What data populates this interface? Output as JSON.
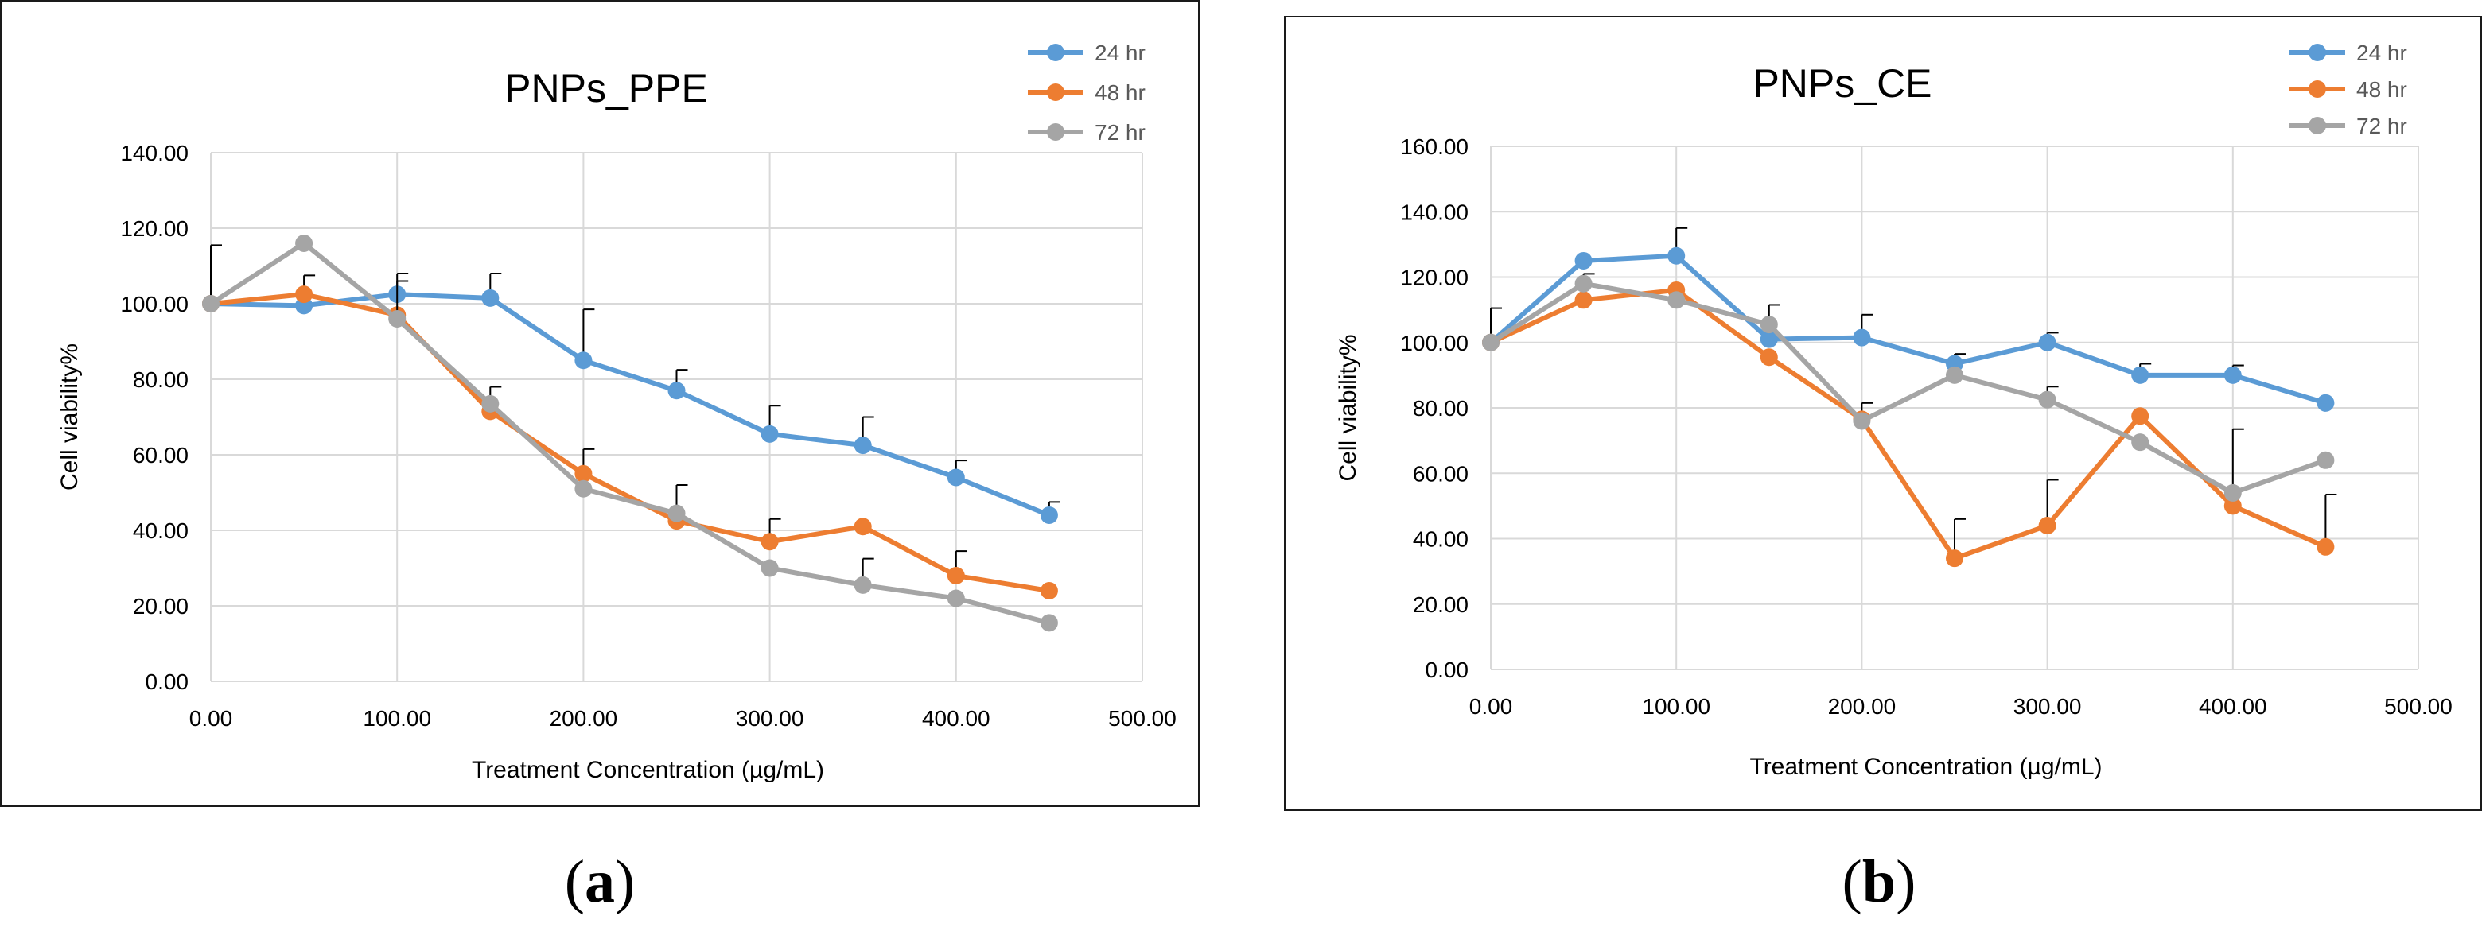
{
  "chart_data": [
    {
      "panel": "a",
      "type": "line",
      "title": "PNPs_PPE",
      "xlabel": "Treatment Concentration (µg/mL)",
      "ylabel": "Cell viability%",
      "xlim": [
        0,
        500
      ],
      "ylim": [
        0,
        140
      ],
      "x_ticks": [
        "0.00",
        "100.00",
        "200.00",
        "300.00",
        "400.00",
        "500.00"
      ],
      "y_ticks": [
        "0.00",
        "20.00",
        "40.00",
        "60.00",
        "80.00",
        "100.00",
        "120.00",
        "140.00"
      ],
      "x_tick_values": [
        0,
        100,
        200,
        300,
        400,
        500
      ],
      "y_tick_values": [
        0,
        20,
        40,
        60,
        80,
        100,
        120,
        140
      ],
      "grid": true,
      "legend_position": "top-right",
      "x": [
        0,
        50,
        100,
        150,
        200,
        250,
        300,
        350,
        400,
        450
      ],
      "series": [
        {
          "name": "24 hr",
          "color": "#5b9bd5",
          "values": [
            100,
            99.5,
            102.5,
            101.5,
            85,
            77,
            65.5,
            62.5,
            54,
            44
          ],
          "errors": [
            0,
            0,
            5.5,
            6.5,
            13.5,
            5.5,
            7.5,
            7.5,
            4.5,
            3.5
          ]
        },
        {
          "name": "48 hr",
          "color": "#ed7d31",
          "values": [
            100,
            102.5,
            97,
            71.5,
            55,
            42.5,
            37,
            41,
            28,
            24
          ],
          "errors": [
            0,
            5,
            0,
            0,
            6.5,
            0,
            6,
            0,
            6.5,
            0
          ]
        },
        {
          "name": "72 hr",
          "color": "#a5a5a5",
          "values": [
            100,
            116,
            96,
            73.5,
            51,
            44.5,
            30,
            25.5,
            22,
            15.5
          ],
          "errors": [
            15.5,
            0,
            10,
            4.5,
            0,
            7.5,
            0,
            7,
            0,
            0
          ]
        }
      ]
    },
    {
      "panel": "b",
      "type": "line",
      "title": "PNPs_CE",
      "xlabel": "Treatment Concentration (µg/mL)",
      "ylabel": "Cell viability%",
      "xlim": [
        0,
        500
      ],
      "ylim": [
        0,
        160
      ],
      "x_ticks": [
        "0.00",
        "100.00",
        "200.00",
        "300.00",
        "400.00",
        "500.00"
      ],
      "y_ticks": [
        "0.00",
        "20.00",
        "40.00",
        "60.00",
        "80.00",
        "100.00",
        "120.00",
        "140.00",
        "160.00"
      ],
      "x_tick_values": [
        0,
        100,
        200,
        300,
        400,
        500
      ],
      "y_tick_values": [
        0,
        20,
        40,
        60,
        80,
        100,
        120,
        140,
        160
      ],
      "grid": true,
      "legend_position": "top-right",
      "x": [
        0,
        50,
        100,
        150,
        200,
        250,
        300,
        350,
        400,
        450
      ],
      "series": [
        {
          "name": "24 hr",
          "color": "#5b9bd5",
          "values": [
            100,
            125,
            126.5,
            101,
            101.5,
            93.5,
            100,
            90,
            90,
            81.5
          ],
          "errors": [
            10.5,
            0,
            8.5,
            0,
            7,
            3,
            3,
            3.5,
            3,
            0
          ]
        },
        {
          "name": "48 hr",
          "color": "#ed7d31",
          "values": [
            100,
            113,
            116,
            95.5,
            76.5,
            34,
            44,
            77.5,
            50,
            37.5
          ],
          "errors": [
            0,
            0,
            0,
            0,
            5,
            12,
            14,
            0,
            23.5,
            16
          ]
        },
        {
          "name": "72 hr",
          "color": "#a5a5a5",
          "values": [
            100,
            118,
            113,
            105.5,
            76,
            90,
            82.5,
            69.5,
            54,
            64
          ],
          "errors": [
            0,
            3,
            0,
            6,
            0,
            0,
            4,
            0,
            0,
            0
          ]
        }
      ]
    }
  ],
  "labels": {
    "a": "a",
    "b": "b"
  }
}
